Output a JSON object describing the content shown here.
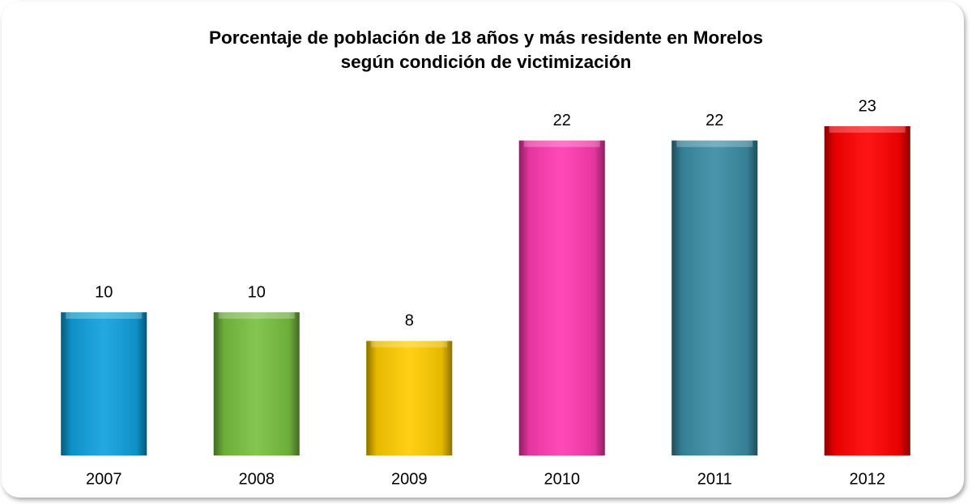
{
  "chart_data": {
    "type": "bar",
    "title": "Porcentaje de población de 18 años y más residente en Morelos según condición de victimización",
    "categories": [
      "2007",
      "2008",
      "2009",
      "2010",
      "2011",
      "2012"
    ],
    "values": [
      10,
      10,
      8,
      22,
      22,
      23
    ],
    "colors": [
      "#10a0dc",
      "#78c040",
      "#ffcc00",
      "#ff3ab0",
      "#3a8ca4",
      "#ff0000"
    ]
  }
}
